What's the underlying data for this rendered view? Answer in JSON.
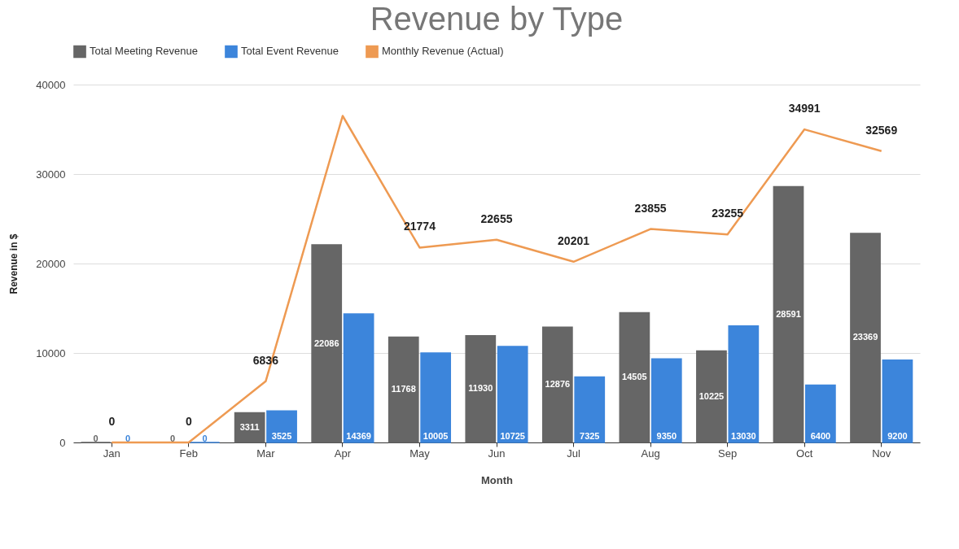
{
  "chart_data": {
    "type": "bar",
    "title": "Revenue by Type",
    "xlabel": "Month",
    "ylabel": "Revenue in $",
    "categories": [
      "Jan",
      "Feb",
      "Mar",
      "Apr",
      "May",
      "Jun",
      "Jul",
      "Aug",
      "Sep",
      "Oct",
      "Nov"
    ],
    "series": [
      {
        "name": "Total Meeting Revenue",
        "color": "#666666",
        "values": [
          0,
          0,
          3311,
          22086,
          11768,
          11930,
          12876,
          14505,
          10225,
          28591,
          23369
        ],
        "value_labels": [
          "0",
          "0",
          "3311",
          "22086",
          "11768",
          "11930",
          "12876",
          "14505",
          "10225",
          "28591",
          "23369"
        ]
      },
      {
        "name": "Total Event Revenue",
        "color": "#3c85db",
        "values": [
          0,
          0,
          3525,
          14369,
          10005,
          10725,
          7325,
          9350,
          13030,
          6400,
          9200
        ],
        "value_labels": [
          "0",
          "0",
          "3525",
          "14369",
          "10005",
          "10725",
          "7325",
          "9350",
          "13030",
          "6400",
          "9200"
        ]
      },
      {
        "name": "Monthly Revenue (Actual)",
        "type": "line",
        "color": "#ee9a52",
        "values": [
          0,
          0,
          6836,
          36500,
          21774,
          22655,
          20201,
          23855,
          23255,
          34991,
          32569
        ],
        "value_labels": [
          "0",
          "0",
          "6836",
          null,
          "21774",
          "22655",
          "20201",
          "23855",
          "23255",
          "34991",
          "32569"
        ]
      }
    ],
    "ylim": [
      0,
      40000
    ],
    "yticks": [
      0,
      10000,
      20000,
      30000,
      40000
    ],
    "grid": "y",
    "legend": "top"
  }
}
